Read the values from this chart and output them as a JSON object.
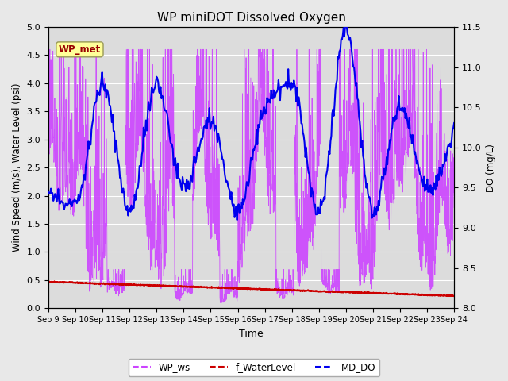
{
  "title": "WP miniDOT Dissolved Oxygen",
  "xlabel": "Time",
  "ylabel_left": "Wind Speed (m/s), Water Level (psi)",
  "ylabel_right": "DO (mg/L)",
  "ylim_left": [
    0.0,
    5.0
  ],
  "ylim_right": [
    8.0,
    11.5
  ],
  "yticks_left": [
    0.0,
    0.5,
    1.0,
    1.5,
    2.0,
    2.5,
    3.0,
    3.5,
    4.0,
    4.5,
    5.0
  ],
  "yticks_right": [
    8.0,
    8.5,
    9.0,
    9.5,
    10.0,
    10.5,
    11.0,
    11.5
  ],
  "fig_bg_color": "#e8e8e8",
  "plot_bg_color": "#dcdcdc",
  "wp_ws_color": "#cc44ff",
  "f_wl_color": "#cc0000",
  "md_do_color": "#0000ee",
  "annotation_text": "WP_met",
  "annotation_bg": "#ffff99",
  "annotation_text_color": "#990000",
  "annotation_border_color": "#999955",
  "legend_ws": "WP_ws",
  "legend_wl": "f_WaterLevel",
  "legend_do": "MD_DO",
  "grid_color": "white",
  "n_ws": 2000,
  "n_do": 500
}
